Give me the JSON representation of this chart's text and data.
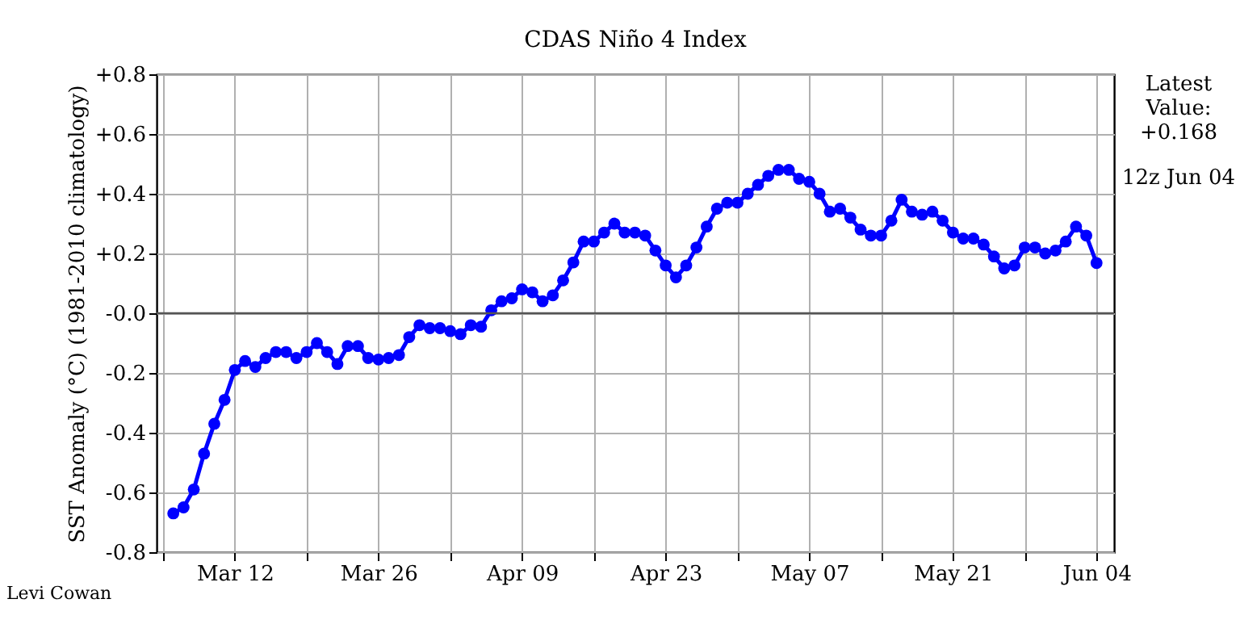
{
  "chart_data": {
    "type": "line",
    "title": "CDAS Niño 4 Index",
    "ylabel": "SST Anomaly (°C) (1981-2010 climatology)",
    "x": [
      "--03-06",
      "--03-07",
      "--03-08",
      "--03-09",
      "--03-10",
      "--03-11",
      "--03-12",
      "--03-13",
      "--03-14",
      "--03-15",
      "--03-16",
      "--03-17",
      "--03-18",
      "--03-19",
      "--03-20",
      "--03-21",
      "--03-22",
      "--03-23",
      "--03-24",
      "--03-25",
      "--03-26",
      "--03-27",
      "--03-28",
      "--03-29",
      "--03-30",
      "--03-31",
      "--04-01",
      "--04-02",
      "--04-03",
      "--04-04",
      "--04-05",
      "--04-06",
      "--04-07",
      "--04-08",
      "--04-09",
      "--04-10",
      "--04-11",
      "--04-12",
      "--04-13",
      "--04-14",
      "--04-15",
      "--04-16",
      "--04-17",
      "--04-18",
      "--04-19",
      "--04-20",
      "--04-21",
      "--04-22",
      "--04-23",
      "--04-24",
      "--04-25",
      "--04-26",
      "--04-27",
      "--04-28",
      "--04-29",
      "--04-30",
      "--05-01",
      "--05-02",
      "--05-03",
      "--05-04",
      "--05-05",
      "--05-06",
      "--05-07",
      "--05-08",
      "--05-09",
      "--05-10",
      "--05-11",
      "--05-12",
      "--05-13",
      "--05-14",
      "--05-15",
      "--05-16",
      "--05-17",
      "--05-18",
      "--05-19",
      "--05-20",
      "--05-21",
      "--05-22",
      "--05-23",
      "--05-24",
      "--05-25",
      "--05-26",
      "--05-27",
      "--05-28",
      "--05-29",
      "--05-30",
      "--05-31",
      "--06-01",
      "--06-02",
      "--06-03",
      "--06-04"
    ],
    "series": [
      {
        "color": "#0000ff",
        "values": [
          -0.67,
          -0.65,
          -0.59,
          -0.47,
          -0.37,
          -0.29,
          -0.19,
          -0.16,
          -0.18,
          -0.15,
          -0.13,
          -0.13,
          -0.15,
          -0.13,
          -0.1,
          -0.13,
          -0.17,
          -0.11,
          -0.11,
          -0.15,
          -0.155,
          -0.15,
          -0.14,
          -0.08,
          -0.04,
          -0.05,
          -0.05,
          -0.06,
          -0.07,
          -0.04,
          -0.045,
          0.01,
          0.04,
          0.05,
          0.08,
          0.07,
          0.04,
          0.06,
          0.11,
          0.17,
          0.24,
          0.24,
          0.27,
          0.3,
          0.27,
          0.27,
          0.26,
          0.21,
          0.16,
          0.12,
          0.16,
          0.22,
          0.29,
          0.35,
          0.37,
          0.37,
          0.4,
          0.43,
          0.46,
          0.48,
          0.48,
          0.45,
          0.44,
          0.4,
          0.34,
          0.35,
          0.32,
          0.28,
          0.26,
          0.26,
          0.31,
          0.38,
          0.34,
          0.33,
          0.34,
          0.31,
          0.27,
          0.25,
          0.25,
          0.23,
          0.19,
          0.15,
          0.16,
          0.22,
          0.22,
          0.2,
          0.21,
          0.24,
          0.29,
          0.26,
          0.168
        ]
      }
    ],
    "xlim": [
      "--03-04T09:00",
      "--06-05T17:00"
    ],
    "xticks": [
      {
        "value": "--03-05",
        "label": null
      },
      {
        "value": "--03-12",
        "label": "Mar 12"
      },
      {
        "value": "--03-19",
        "label": null
      },
      {
        "value": "--03-26",
        "label": "Mar 26"
      },
      {
        "value": "--04-02",
        "label": null
      },
      {
        "value": "--04-09",
        "label": "Apr 09"
      },
      {
        "value": "--04-16",
        "label": null
      },
      {
        "value": "--04-23",
        "label": "Apr 23"
      },
      {
        "value": "--04-30",
        "label": null
      },
      {
        "value": "--05-07",
        "label": "May 07"
      },
      {
        "value": "--05-14",
        "label": null
      },
      {
        "value": "--05-21",
        "label": "May 21"
      },
      {
        "value": "--05-28",
        "label": null
      },
      {
        "value": "--06-04",
        "label": "Jun 04"
      }
    ],
    "ylim": [
      -0.8,
      0.8
    ],
    "yticks": [
      {
        "value": -0.8,
        "label": "-0.8"
      },
      {
        "value": -0.6,
        "label": "-0.6"
      },
      {
        "value": -0.4,
        "label": "-0.4"
      },
      {
        "value": -0.2,
        "label": "-0.2"
      },
      {
        "value": 0,
        "label": "-0.0"
      },
      {
        "value": 0.2,
        "label": "+0.2"
      },
      {
        "value": 0.4,
        "label": "+0.4"
      },
      {
        "value": 0.6,
        "label": "+0.6"
      },
      {
        "value": 0.8,
        "label": "+0.8"
      }
    ],
    "grid": true,
    "marker": "circle",
    "line_style": "solid",
    "ref_lines": [
      {
        "axis": "y",
        "value": 0,
        "color": "#555555"
      }
    ],
    "annotations": [
      "Latest\nValue:\n+0.168",
      "12z Jun 04",
      "Levi Cowan"
    ]
  }
}
